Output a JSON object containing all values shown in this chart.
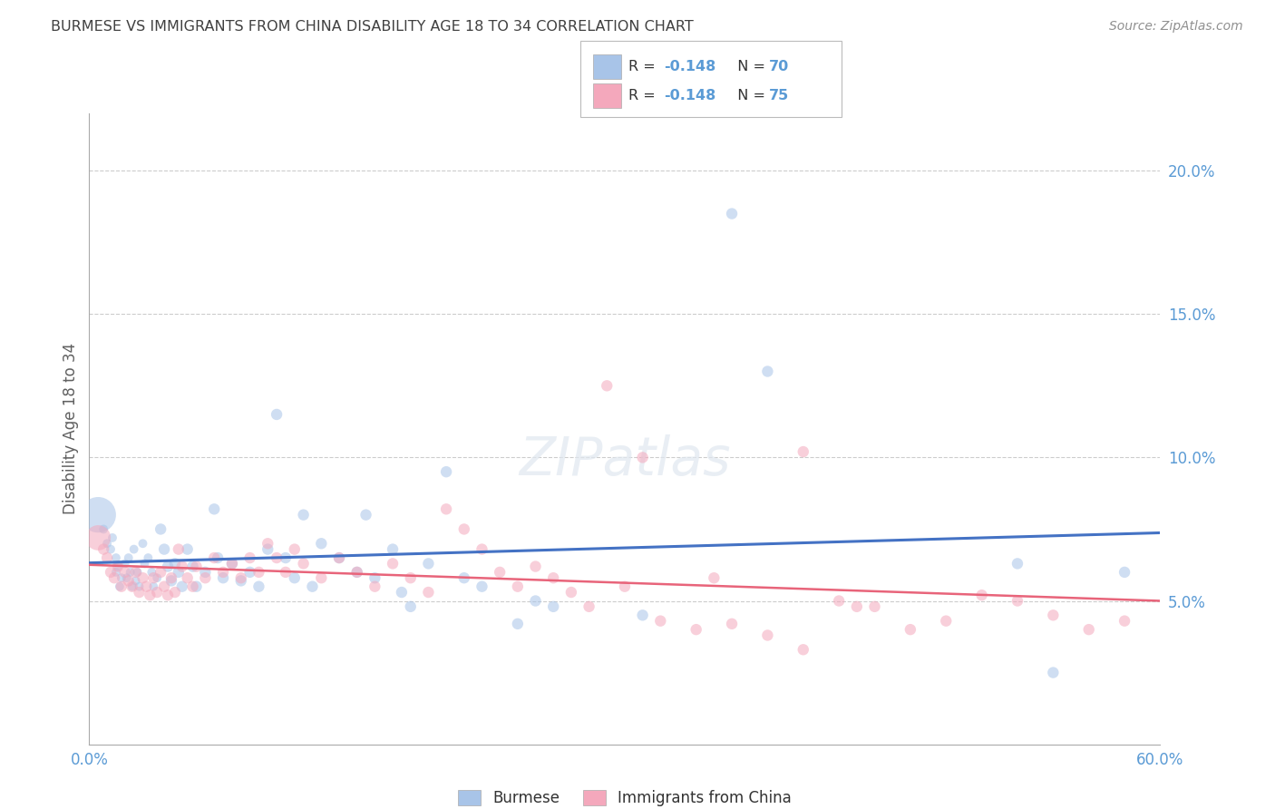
{
  "title": "BURMESE VS IMMIGRANTS FROM CHINA DISABILITY AGE 18 TO 34 CORRELATION CHART",
  "source": "Source: ZipAtlas.com",
  "ylabel": "Disability Age 18 to 34",
  "xlim": [
    0.0,
    0.6
  ],
  "ylim": [
    0.0,
    0.22
  ],
  "xtick_positions": [
    0.0,
    0.6
  ],
  "xtick_labels": [
    "0.0%",
    "60.0%"
  ],
  "ytick_positions": [
    0.05,
    0.1,
    0.15,
    0.2
  ],
  "ytick_labels": [
    "5.0%",
    "10.0%",
    "15.0%",
    "20.0%"
  ],
  "grid_yticks": [
    0.05,
    0.1,
    0.15,
    0.2
  ],
  "legend_labels": [
    "Burmese",
    "Immigrants from China"
  ],
  "blue_R": "-0.148",
  "blue_N": "70",
  "pink_R": "-0.148",
  "pink_N": "75",
  "blue_color": "#a8c4e8",
  "pink_color": "#f4a8bc",
  "blue_line_color": "#4472c4",
  "pink_line_color": "#e8647a",
  "background_color": "#ffffff",
  "grid_color": "#cccccc",
  "title_color": "#404040",
  "source_color": "#909090",
  "axis_label_color": "#606060",
  "tick_color": "#5b9bd5",
  "blue_scatter_x": [
    0.005,
    0.008,
    0.01,
    0.012,
    0.013,
    0.015,
    0.015,
    0.016,
    0.017,
    0.018,
    0.02,
    0.021,
    0.022,
    0.023,
    0.024,
    0.025,
    0.026,
    0.027,
    0.028,
    0.03,
    0.031,
    0.033,
    0.035,
    0.036,
    0.038,
    0.04,
    0.042,
    0.044,
    0.046,
    0.048,
    0.05,
    0.052,
    0.055,
    0.058,
    0.06,
    0.065,
    0.07,
    0.072,
    0.075,
    0.08,
    0.085,
    0.09,
    0.095,
    0.1,
    0.105,
    0.11,
    0.115,
    0.12,
    0.125,
    0.13,
    0.14,
    0.15,
    0.155,
    0.16,
    0.17,
    0.175,
    0.18,
    0.19,
    0.2,
    0.21,
    0.22,
    0.24,
    0.25,
    0.26,
    0.31,
    0.36,
    0.38,
    0.52,
    0.54,
    0.58
  ],
  "blue_scatter_y": [
    0.08,
    0.075,
    0.07,
    0.068,
    0.072,
    0.065,
    0.06,
    0.062,
    0.055,
    0.058,
    0.063,
    0.058,
    0.065,
    0.06,
    0.055,
    0.068,
    0.057,
    0.06,
    0.055,
    0.07,
    0.063,
    0.065,
    0.06,
    0.055,
    0.058,
    0.075,
    0.068,
    0.062,
    0.057,
    0.063,
    0.06,
    0.055,
    0.068,
    0.062,
    0.055,
    0.06,
    0.082,
    0.065,
    0.058,
    0.063,
    0.057,
    0.06,
    0.055,
    0.068,
    0.115,
    0.065,
    0.058,
    0.08,
    0.055,
    0.07,
    0.065,
    0.06,
    0.08,
    0.058,
    0.068,
    0.053,
    0.048,
    0.063,
    0.095,
    0.058,
    0.055,
    0.042,
    0.05,
    0.048,
    0.045,
    0.185,
    0.13,
    0.063,
    0.025,
    0.06
  ],
  "blue_scatter_sizes": [
    800,
    50,
    50,
    50,
    50,
    50,
    50,
    50,
    50,
    50,
    50,
    50,
    50,
    50,
    50,
    50,
    50,
    50,
    50,
    50,
    50,
    50,
    50,
    50,
    50,
    80,
    80,
    80,
    80,
    80,
    80,
    80,
    80,
    80,
    80,
    80,
    80,
    80,
    80,
    80,
    80,
    80,
    80,
    80,
    80,
    80,
    80,
    80,
    80,
    80,
    80,
    80,
    80,
    80,
    80,
    80,
    80,
    80,
    80,
    80,
    80,
    80,
    80,
    80,
    80,
    80,
    80,
    80,
    80,
    80
  ],
  "pink_scatter_x": [
    0.005,
    0.008,
    0.01,
    0.012,
    0.014,
    0.016,
    0.018,
    0.02,
    0.022,
    0.024,
    0.026,
    0.028,
    0.03,
    0.032,
    0.034,
    0.036,
    0.038,
    0.04,
    0.042,
    0.044,
    0.046,
    0.048,
    0.05,
    0.052,
    0.055,
    0.058,
    0.06,
    0.065,
    0.07,
    0.075,
    0.08,
    0.085,
    0.09,
    0.095,
    0.1,
    0.105,
    0.11,
    0.115,
    0.12,
    0.13,
    0.14,
    0.15,
    0.16,
    0.17,
    0.18,
    0.19,
    0.2,
    0.21,
    0.22,
    0.23,
    0.24,
    0.25,
    0.26,
    0.27,
    0.28,
    0.3,
    0.32,
    0.34,
    0.36,
    0.38,
    0.4,
    0.42,
    0.44,
    0.46,
    0.48,
    0.5,
    0.52,
    0.54,
    0.56,
    0.58,
    0.29,
    0.31,
    0.35,
    0.4,
    0.43
  ],
  "pink_scatter_y": [
    0.072,
    0.068,
    0.065,
    0.06,
    0.058,
    0.062,
    0.055,
    0.06,
    0.057,
    0.055,
    0.06,
    0.053,
    0.058,
    0.055,
    0.052,
    0.058,
    0.053,
    0.06,
    0.055,
    0.052,
    0.058,
    0.053,
    0.068,
    0.062,
    0.058,
    0.055,
    0.062,
    0.058,
    0.065,
    0.06,
    0.063,
    0.058,
    0.065,
    0.06,
    0.07,
    0.065,
    0.06,
    0.068,
    0.063,
    0.058,
    0.065,
    0.06,
    0.055,
    0.063,
    0.058,
    0.053,
    0.082,
    0.075,
    0.068,
    0.06,
    0.055,
    0.062,
    0.058,
    0.053,
    0.048,
    0.055,
    0.043,
    0.04,
    0.042,
    0.038,
    0.033,
    0.05,
    0.048,
    0.04,
    0.043,
    0.052,
    0.05,
    0.045,
    0.04,
    0.043,
    0.125,
    0.1,
    0.058,
    0.102,
    0.048
  ]
}
